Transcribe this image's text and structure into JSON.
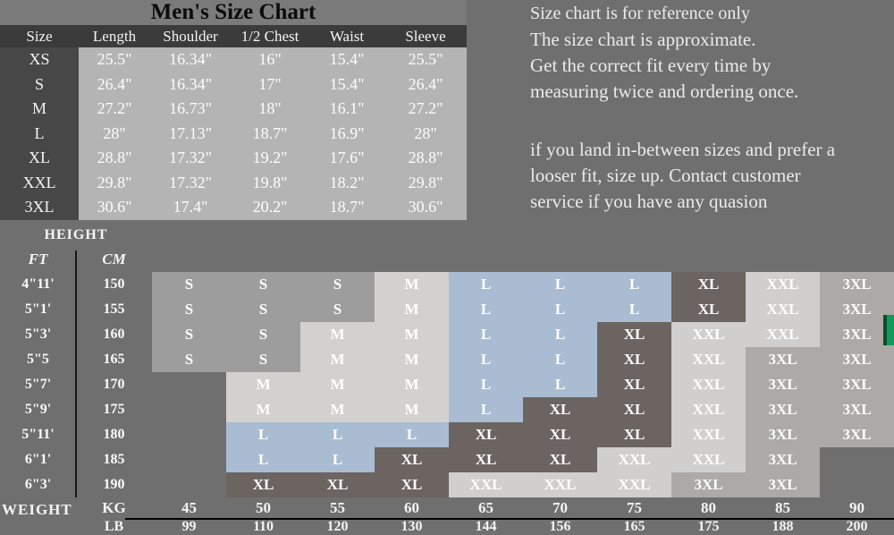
{
  "title": "Men's Size Chart",
  "notes": {
    "line1": "Size chart is for reference only",
    "para1": "The size chart is approximate.\nGet the correct fit every time by\nmeasuring twice and ordering once.",
    "para2": "if you land in-between sizes and prefer a\nlooser fit, size up. Contact customer\nservice if you have any quasion"
  },
  "size_table": {
    "columns": [
      "Size",
      "Length",
      "Shoulder",
      "1/2 Chest",
      "Waist",
      "Sleeve"
    ],
    "rows": [
      [
        "XS",
        "25.5\"",
        "16.34\"",
        "16\"",
        "15.4\"",
        "25.5\""
      ],
      [
        "S",
        "26.4\"",
        "16.34\"",
        "17\"",
        "15.4\"",
        "26.4\""
      ],
      [
        "M",
        "27.2\"",
        "16.73\"",
        "18\"",
        "16.1\"",
        "27.2\""
      ],
      [
        "L",
        "28\"",
        "17.13\"",
        "18.7\"",
        "16.9\"",
        "28\""
      ],
      [
        "XL",
        "28.8\"",
        "17.32\"",
        "19.2\"",
        "17.6\"",
        "28.8\""
      ],
      [
        "XXL",
        "29.8\"",
        "17.32\"",
        "19.8\"",
        "18.2\"",
        "29.8\""
      ],
      [
        "3XL",
        "30.6\"",
        "17.4\"",
        "20.2\"",
        "18.7\"",
        "30.6\""
      ]
    ]
  },
  "fit_matrix": {
    "height_label": "HEIGHT",
    "weight_label": "WEIGHT",
    "ft_label": "FT",
    "cm_label": "CM",
    "kg_label": "KG",
    "lb_label": "LB",
    "kg_values": [
      "45",
      "50",
      "55",
      "60",
      "65",
      "70",
      "75",
      "80",
      "85",
      "90"
    ],
    "lb_values": [
      "99",
      "110",
      "120",
      "130",
      "144",
      "156",
      "165",
      "175",
      "188",
      "200"
    ],
    "rows": [
      {
        "ft": "4\"11'",
        "cm": "150",
        "sizes": [
          "S",
          "S",
          "S",
          "M",
          "L",
          "L",
          "L",
          "XL",
          "XXL",
          "3XL"
        ]
      },
      {
        "ft": "5\"1'",
        "cm": "155",
        "sizes": [
          "S",
          "S",
          "S",
          "M",
          "L",
          "L",
          "L",
          "XL",
          "XXL",
          "3XL"
        ]
      },
      {
        "ft": "5\"3'",
        "cm": "160",
        "sizes": [
          "S",
          "S",
          "M",
          "M",
          "L",
          "L",
          "XL",
          "XXL",
          "XXL",
          "3XL"
        ]
      },
      {
        "ft": "5\"5",
        "cm": "165",
        "sizes": [
          "S",
          "S",
          "M",
          "M",
          "L",
          "L",
          "XL",
          "XXL",
          "3XL",
          "3XL"
        ]
      },
      {
        "ft": "5\"7'",
        "cm": "170",
        "sizes": [
          "",
          "M",
          "M",
          "M",
          "L",
          "L",
          "XL",
          "XXL",
          "3XL",
          "3XL"
        ]
      },
      {
        "ft": "5\"9'",
        "cm": "175",
        "sizes": [
          "",
          "M",
          "M",
          "M",
          "L",
          "XL",
          "XL",
          "XXL",
          "3XL",
          "3XL"
        ]
      },
      {
        "ft": "5\"11'",
        "cm": "180",
        "sizes": [
          "",
          "L",
          "L",
          "L",
          "XL",
          "XL",
          "XL",
          "XXL",
          "3XL",
          "3XL"
        ]
      },
      {
        "ft": "6\"1'",
        "cm": "185",
        "sizes": [
          "",
          "L",
          "L",
          "XL",
          "XL",
          "XL",
          "XXL",
          "XXL",
          "3XL",
          ""
        ]
      },
      {
        "ft": "6\"3'",
        "cm": "190",
        "sizes": [
          "",
          "XL",
          "XL",
          "XL",
          "XXL",
          "XXL",
          "XXL",
          "3XL",
          "3XL",
          ""
        ]
      }
    ],
    "size_colors": {
      "S": "#9d9d9d",
      "M": "#d3d1d0",
      "L": "#a9bcd2",
      "XL": "#6b6460",
      "XXL": "#d0cfce",
      "3XL": "#aca9a6"
    }
  },
  "chart_data": [
    {
      "type": "table",
      "title": "Men's Size Chart",
      "columns": [
        "Size",
        "Length",
        "Shoulder",
        "1/2 Chest",
        "Waist",
        "Sleeve"
      ],
      "rows": [
        [
          "XS",
          "25.5\"",
          "16.34\"",
          "16\"",
          "15.4\"",
          "25.5\""
        ],
        [
          "S",
          "26.4\"",
          "16.34\"",
          "17\"",
          "15.4\"",
          "26.4\""
        ],
        [
          "M",
          "27.2\"",
          "16.73\"",
          "18\"",
          "16.1\"",
          "27.2\""
        ],
        [
          "L",
          "28\"",
          "17.13\"",
          "18.7\"",
          "16.9\"",
          "28\""
        ],
        [
          "XL",
          "28.8\"",
          "17.32\"",
          "19.2\"",
          "17.6\"",
          "28.8\""
        ],
        [
          "XXL",
          "29.8\"",
          "17.32\"",
          "19.8\"",
          "18.2\"",
          "29.8\""
        ],
        [
          "3XL",
          "30.6\"",
          "17.4\"",
          "20.2\"",
          "18.7\"",
          "30.6\""
        ]
      ]
    },
    {
      "type": "table",
      "title": "Recommended size by height and weight",
      "y_axis": {
        "label": "HEIGHT",
        "ft": [
          "4\"11'",
          "5\"1'",
          "5\"3'",
          "5\"5",
          "5\"7'",
          "5\"9'",
          "5\"11'",
          "6\"1'",
          "6\"3'"
        ],
        "cm": [
          150,
          155,
          160,
          165,
          170,
          175,
          180,
          185,
          190
        ]
      },
      "x_axis": {
        "label": "WEIGHT",
        "kg": [
          45,
          50,
          55,
          60,
          65,
          70,
          75,
          80,
          85,
          90
        ],
        "lb": [
          99,
          110,
          120,
          130,
          144,
          156,
          165,
          175,
          188,
          200
        ]
      },
      "cells": [
        [
          "S",
          "S",
          "S",
          "M",
          "L",
          "L",
          "L",
          "XL",
          "XXL",
          "3XL"
        ],
        [
          "S",
          "S",
          "S",
          "M",
          "L",
          "L",
          "L",
          "XL",
          "XXL",
          "3XL"
        ],
        [
          "S",
          "S",
          "M",
          "M",
          "L",
          "L",
          "XL",
          "XXL",
          "XXL",
          "3XL"
        ],
        [
          "S",
          "S",
          "M",
          "M",
          "L",
          "L",
          "XL",
          "XXL",
          "3XL",
          "3XL"
        ],
        [
          "",
          "M",
          "M",
          "M",
          "L",
          "L",
          "XL",
          "XXL",
          "3XL",
          "3XL"
        ],
        [
          "",
          "M",
          "M",
          "M",
          "L",
          "XL",
          "XL",
          "XXL",
          "3XL",
          "3XL"
        ],
        [
          "",
          "L",
          "L",
          "L",
          "XL",
          "XL",
          "XL",
          "XXL",
          "3XL",
          "3XL"
        ],
        [
          "",
          "L",
          "L",
          "XL",
          "XL",
          "XL",
          "XXL",
          "XXL",
          "3XL",
          ""
        ],
        [
          "",
          "XL",
          "XL",
          "XL",
          "XXL",
          "XXL",
          "XXL",
          "3XL",
          "3XL",
          ""
        ]
      ]
    }
  ]
}
